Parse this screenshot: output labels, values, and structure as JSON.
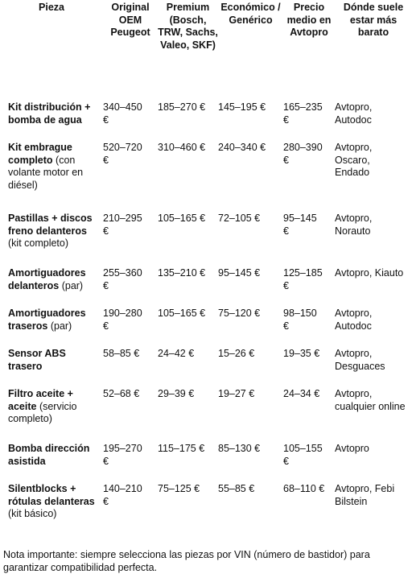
{
  "table": {
    "headers": [
      "Pieza",
      "Original OEM Peugeot",
      "Premium (Bosch, TRW, Sachs, Valeo, SKF)",
      "Económico / Genérico",
      "Precio medio en Avtopro",
      "Dónde suele estar más barato"
    ],
    "rows": [
      {
        "part": "Kit distribución + bomba de agua",
        "oem": "340–450 €",
        "premium": "185–270 €",
        "economic": "145–195 €",
        "avtopro": "165–235 €",
        "where": "Avtopro, Autodoc"
      },
      {
        "part": "Kit embrague completo",
        "note": "(con volante motor en diésel)",
        "oem": "520–720 €",
        "premium": "310–460 €",
        "economic": "240–340 €",
        "avtopro": "280–390 €",
        "where": "Avtopro, Oscaro, Endado"
      },
      {
        "part": "Pastillas + discos freno delanteros",
        "note": "(kit completo)",
        "oem": "210–295 €",
        "premium": "105–165 €",
        "economic": "72–105 €",
        "avtopro": "95–145 €",
        "where": "Avtopro, Norauto"
      },
      {
        "part": "Amortiguadores delanteros",
        "note": "(par)",
        "oem": "255–360 €",
        "premium": "135–210 €",
        "economic": "95–145 €",
        "avtopro": "125–185 €",
        "where": "Avtopro, Kiauto"
      },
      {
        "part": "Amortiguadores traseros",
        "note": "(par)",
        "oem": "190–280 €",
        "premium": "105–165 €",
        "economic": "75–120 €",
        "avtopro": "98–150 €",
        "where": "Avtopro, Autodoc"
      },
      {
        "part": "Sensor ABS trasero",
        "oem": "58–85 €",
        "premium": "24–42 €",
        "economic": "15–26 €",
        "avtopro": "19–35 €",
        "where": "Avtopro, Desguaces"
      },
      {
        "part": "Filtro aceite + aceite",
        "note": "(servicio completo)",
        "oem": "52–68 €",
        "premium": "29–39 €",
        "economic": "19–27 €",
        "avtopro": "24–34 €",
        "where": "Avtopro, cualquier online"
      },
      {
        "part": "Bomba dirección asistida",
        "oem": "195–270 €",
        "premium": "115–175 €",
        "economic": "85–130 €",
        "avtopro": "105–155 €",
        "where": "Avtopro"
      },
      {
        "part": "Silentblocks + rótulas delanteras",
        "note": "(kit básico)",
        "oem": "140–210 €",
        "premium": "75–125 €",
        "economic": "55–85 €",
        "avtopro": "68–110 €",
        "where": "Avtopro, Febi Bilstein"
      }
    ]
  },
  "footer": {
    "note": "Nota importante: siempre selecciona las piezas por VIN (número de bastidor) para garantizar compatibilidad perfecta."
  }
}
